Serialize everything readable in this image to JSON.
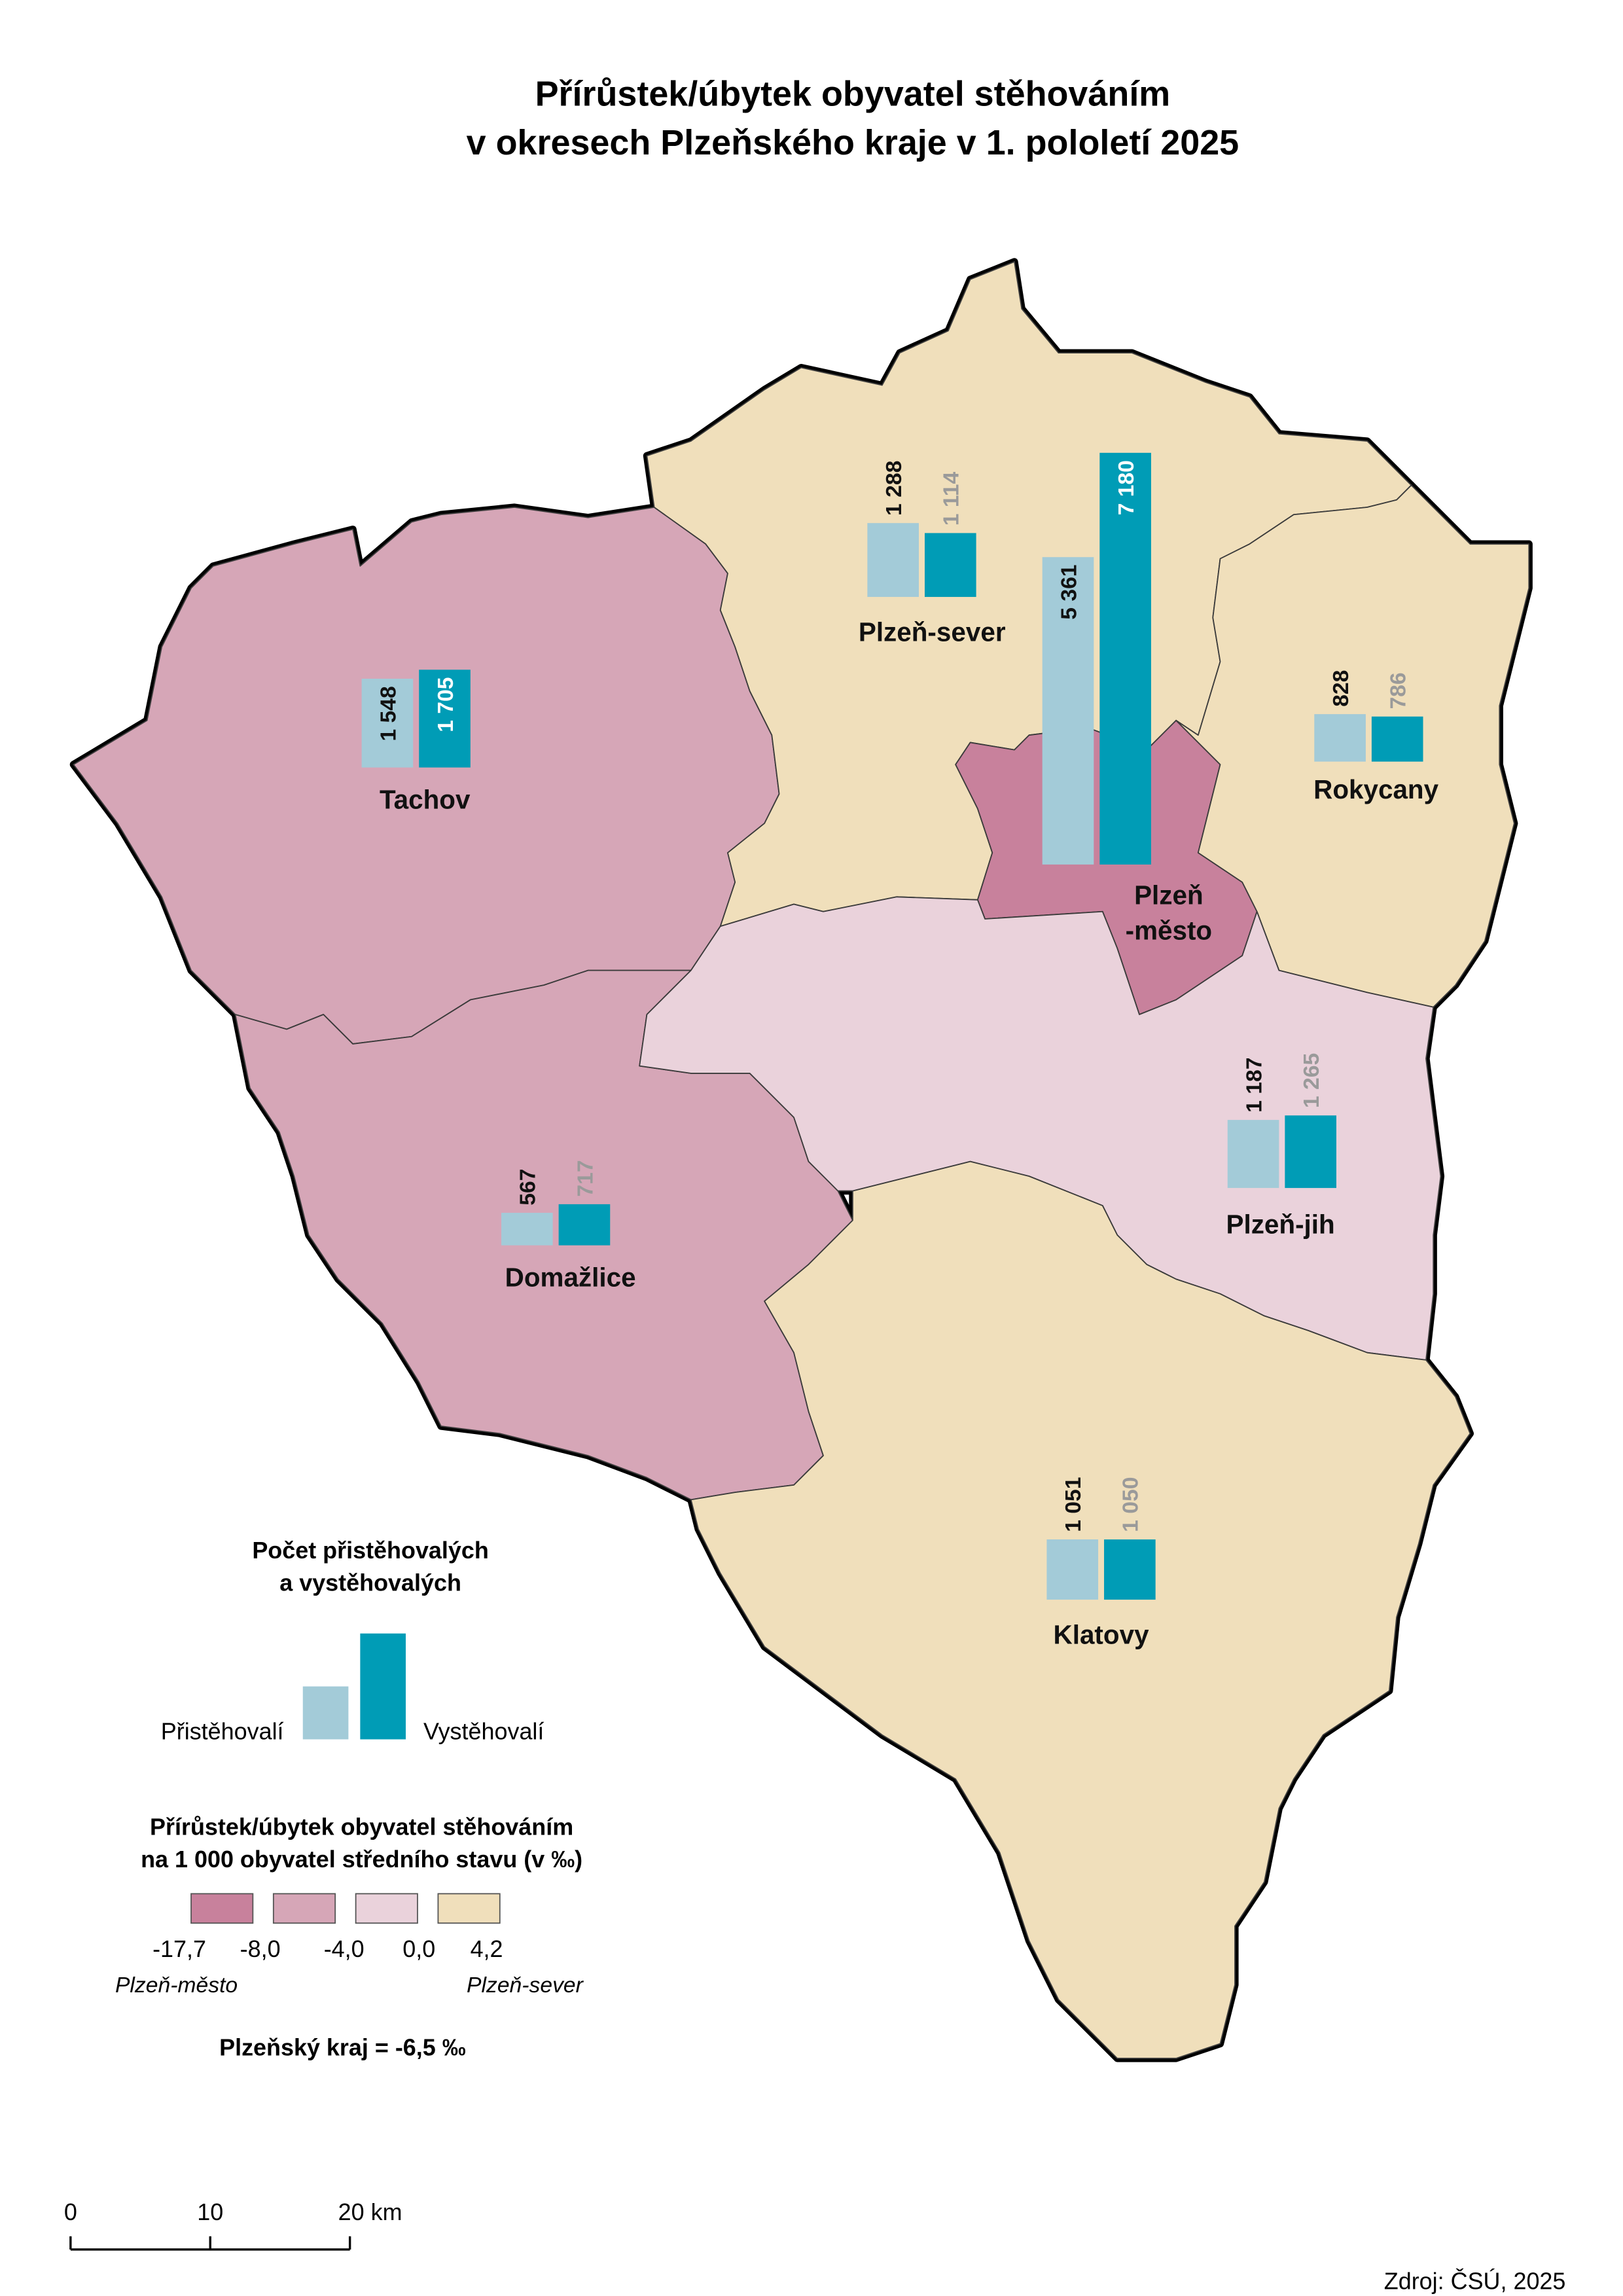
{
  "title": [
    "Přírůstek/úbytek obyvatel stěhováním",
    "v okresech Plzeňského kraje v 1. pololetí 2025"
  ],
  "series": [
    {
      "name": "Přistěhovalí",
      "color": "#a3cbd8"
    },
    {
      "name": "Vystěhovalí",
      "color": "#009cb6"
    }
  ],
  "districts": [
    {
      "name": [
        "Tachov"
      ],
      "color": "#d6a6b7",
      "values": [
        1548,
        1705
      ],
      "value_labels": [
        "1 548",
        "1 705"
      ]
    },
    {
      "name": [
        "Plzeň-sever"
      ],
      "color": "#f0dfbb",
      "values": [
        1288,
        1114
      ],
      "value_labels": [
        "1 288",
        "1 114"
      ]
    },
    {
      "name": [
        "Plzeň",
        "-město"
      ],
      "color": "#c8819c",
      "values": [
        5361,
        7180
      ],
      "value_labels": [
        "5 361",
        "7 180"
      ]
    },
    {
      "name": [
        "Rokycany"
      ],
      "color": "#f0dfbb",
      "values": [
        828,
        786
      ],
      "value_labels": [
        "828",
        "786"
      ]
    },
    {
      "name": [
        "Domažlice"
      ],
      "color": "#d6a6b7",
      "values": [
        567,
        717
      ],
      "value_labels": [
        "567",
        "717"
      ]
    },
    {
      "name": [
        "Plzeň-jih"
      ],
      "color": "#ead2db",
      "values": [
        1187,
        1265
      ],
      "value_labels": [
        "1 187",
        "1 265"
      ]
    },
    {
      "name": [
        "Klatovy"
      ],
      "color": "#f0dfbb",
      "values": [
        1051,
        1050
      ],
      "value_labels": [
        "1 051",
        "1 050"
      ]
    }
  ],
  "legend_bars": {
    "title": [
      "Počet přistěhovalých",
      "a vystěhovalých"
    ]
  },
  "legend_classes": {
    "title": [
      "Přírůstek/úbytek obyvatel stěhováním",
      "na 1 000 obyvatel středního stavu (v ‰)"
    ],
    "colors": [
      "#c8819c",
      "#d6a6b7",
      "#ead2db",
      "#f0dfbb"
    ],
    "breaks": [
      {
        "value": -17.7,
        "label": "-17,7"
      },
      {
        "value": -8.0,
        "label": "-8,0"
      },
      {
        "value": -4.0,
        "label": "-4,0"
      },
      {
        "value": 0.0,
        "label": "0,0"
      },
      {
        "value": 4.2,
        "label": "4,2"
      }
    ],
    "min_note": "Plzeň-město",
    "max_note": "Plzeň-sever"
  },
  "region_total": "Plzeňský kraj = -6,5 ‰",
  "scale_bar": {
    "ticks": [
      0,
      10,
      {
        "value": 20,
        "label": "20 km"
      }
    ]
  },
  "source": "Zdroj: ČSÚ, 2025"
}
